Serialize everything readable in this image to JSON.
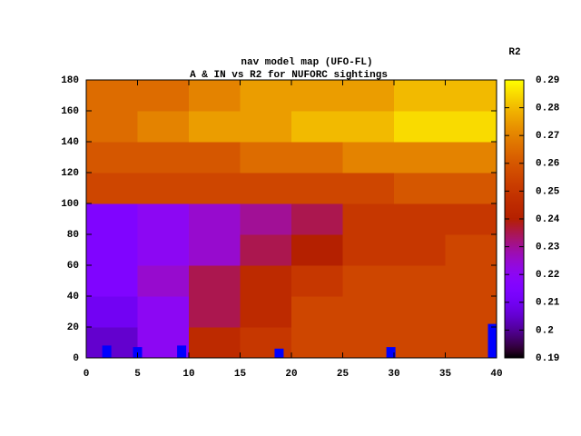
{
  "chart_data": {
    "type": "heatmap",
    "title": "nav model map (UFO-FL)",
    "subtitle": "A & IN vs R2 for NUFORC sightings",
    "colorbar_label": "R2",
    "x_bins": [
      0,
      5,
      10,
      15,
      20,
      25,
      30,
      35,
      40
    ],
    "y_bins": [
      0,
      20,
      40,
      60,
      80,
      100,
      120,
      140,
      160,
      180
    ],
    "z": [
      [
        0.205,
        0.22,
        0.245,
        0.25,
        0.255,
        0.255,
        0.255,
        0.255
      ],
      [
        0.21,
        0.22,
        0.235,
        0.245,
        0.255,
        0.255,
        0.255,
        0.255
      ],
      [
        0.215,
        0.225,
        0.235,
        0.245,
        0.25,
        0.255,
        0.255,
        0.255
      ],
      [
        0.215,
        0.22,
        0.225,
        0.235,
        0.24,
        0.25,
        0.25,
        0.255
      ],
      [
        0.215,
        0.22,
        0.225,
        0.23,
        0.235,
        0.25,
        0.25,
        0.25
      ],
      [
        0.255,
        0.255,
        0.255,
        0.255,
        0.255,
        0.255,
        0.26,
        0.26
      ],
      [
        0.26,
        0.26,
        0.26,
        0.265,
        0.265,
        0.27,
        0.27,
        0.27
      ],
      [
        0.265,
        0.27,
        0.275,
        0.275,
        0.28,
        0.28,
        0.285,
        0.285
      ],
      [
        0.265,
        0.265,
        0.27,
        0.275,
        0.275,
        0.275,
        0.28,
        0.28
      ]
    ],
    "palette": [
      7,
      5,
      15
    ],
    "xlim": [
      0,
      40
    ],
    "xticks": [
      0,
      5,
      10,
      15,
      20,
      25,
      30,
      35,
      40
    ],
    "ylim": [
      0,
      180
    ],
    "yticks": [
      0,
      20,
      40,
      60,
      80,
      100,
      120,
      140,
      160,
      180
    ],
    "cblim": [
      0.19,
      0.29
    ],
    "cbticks": [
      0.19,
      0.2,
      0.21,
      0.22,
      0.23,
      0.24,
      0.25,
      0.26,
      0.27,
      0.28,
      0.29
    ],
    "bars": {
      "color": "#0000ff",
      "x": [
        2,
        5,
        9.3,
        18.8,
        29.7,
        39.6
      ],
      "values": [
        8,
        7,
        8,
        6,
        7,
        22
      ]
    }
  }
}
